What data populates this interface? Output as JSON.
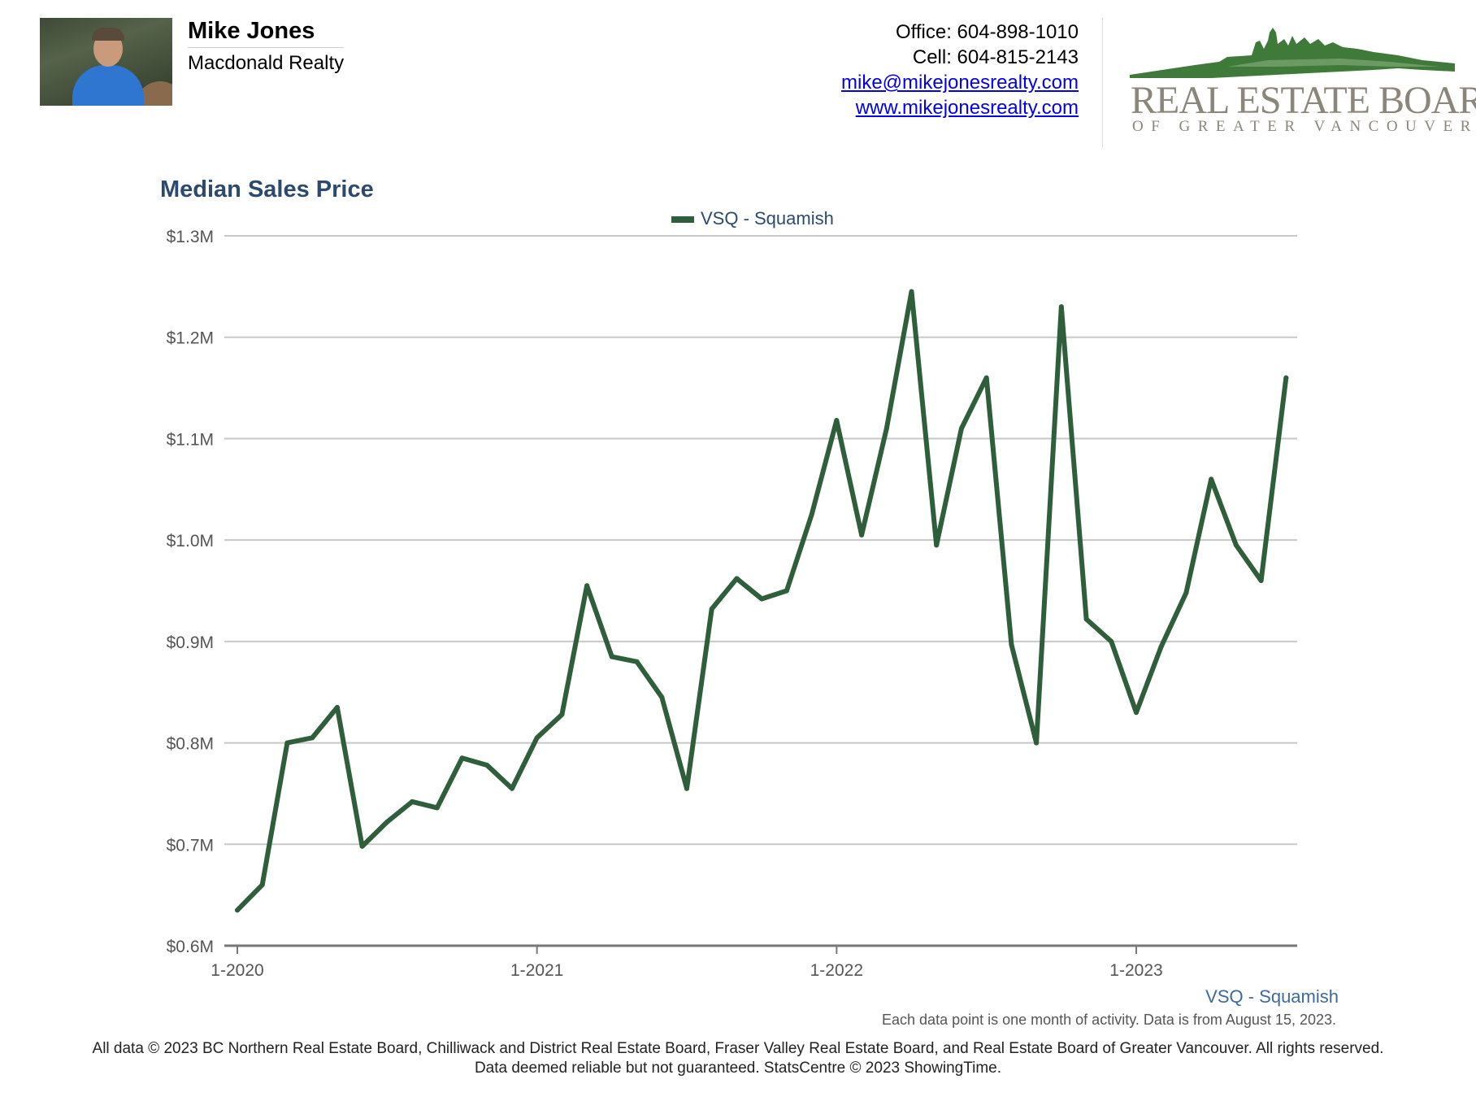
{
  "header": {
    "agent_name": "Mike Jones",
    "company": "Macdonald Realty",
    "office": "Office: 604-898-1010",
    "cell": "Cell: 604-815-2143",
    "email": "mike@mikejonesrealty.com",
    "website": "www.mikejonesrealty.com",
    "logo_title": "REAL ESTATE BOARD",
    "logo_subtitle": "OF GREATER VANCOUVER"
  },
  "colors": {
    "series": "#2e5e3a",
    "title": "#2c4a6e",
    "logo_green": "#3f7a3a",
    "logo_text": "#8c8579"
  },
  "chart_data": {
    "type": "line",
    "title": "Median Sales Price",
    "xlabel": "",
    "ylabel": "",
    "ylim": [
      0.6,
      1.3
    ],
    "yticks": [
      0.6,
      0.7,
      0.8,
      0.9,
      1.0,
      1.1,
      1.2,
      1.3
    ],
    "ytick_labels": [
      "$0.6M",
      "$0.7M",
      "$0.8M",
      "$0.9M",
      "$1.0M",
      "$1.1M",
      "$1.2M",
      "$1.3M"
    ],
    "xtick_labels": [
      "1-2020",
      "1-2021",
      "1-2022",
      "1-2023"
    ],
    "x": [
      "2020-01",
      "2020-02",
      "2020-03",
      "2020-04",
      "2020-05",
      "2020-06",
      "2020-07",
      "2020-08",
      "2020-09",
      "2020-10",
      "2020-11",
      "2020-12",
      "2021-01",
      "2021-02",
      "2021-03",
      "2021-04",
      "2021-05",
      "2021-06",
      "2021-07",
      "2021-08",
      "2021-09",
      "2021-10",
      "2021-11",
      "2021-12",
      "2022-01",
      "2022-02",
      "2022-03",
      "2022-04",
      "2022-05",
      "2022-06",
      "2022-07",
      "2022-08",
      "2022-09",
      "2022-10",
      "2022-11",
      "2022-12",
      "2023-01",
      "2023-02",
      "2023-03",
      "2023-04",
      "2023-05",
      "2023-06",
      "2023-07"
    ],
    "grid": true,
    "legend": "top-center",
    "series": [
      {
        "name": "VSQ - Squamish",
        "values": [
          0.635,
          0.66,
          0.8,
          0.805,
          0.835,
          0.698,
          0.722,
          0.742,
          0.736,
          0.785,
          0.778,
          0.755,
          0.805,
          0.828,
          0.955,
          0.885,
          0.88,
          0.845,
          0.755,
          0.932,
          0.962,
          0.942,
          0.95,
          1.025,
          1.118,
          1.005,
          1.11,
          1.245,
          0.995,
          1.11,
          1.16,
          0.897,
          0.8,
          1.23,
          0.922,
          0.9,
          0.83,
          0.895,
          0.948,
          1.06,
          0.995,
          0.96,
          1.16
        ]
      }
    ]
  },
  "series_label": "VSQ - Squamish",
  "note": "Each data point is one month of activity. Data is from August 15, 2023.",
  "footer": {
    "line1": "All data © 2023 BC Northern Real Estate Board, Chilliwack and District Real Estate Board, Fraser Valley Real Estate Board, and Real Estate Board of Greater Vancouver. All rights reserved.",
    "line2": "Data deemed reliable but not guaranteed. StatsCentre © 2023 ShowingTime."
  }
}
